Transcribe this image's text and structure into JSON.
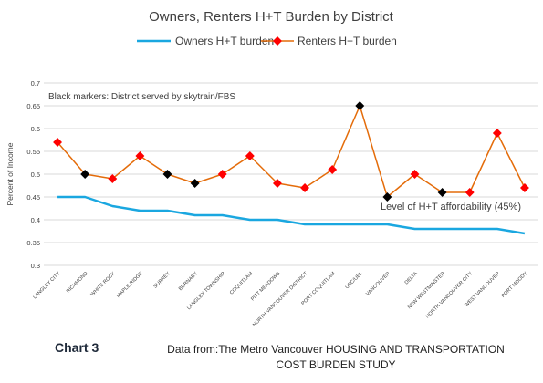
{
  "chart_data": {
    "type": "line",
    "title": "Owners, Renters H+T Burden by District",
    "ylabel": "Percent of Income",
    "xlabel": "",
    "ylim": [
      0.3,
      0.7
    ],
    "yticks": [
      0.3,
      0.35,
      0.4,
      0.45,
      0.5,
      0.55,
      0.6,
      0.65,
      0.7
    ],
    "grid": true,
    "legend_position": "top-center",
    "categories": [
      "LANGLEY CITY",
      "RICHMOND",
      "WHITE ROCK",
      "MAPLE RIDGE",
      "SURREY",
      "BURNABY",
      "LANGLEY TOWNSHIP",
      "COQUITLAM",
      "PITT MEADOWS",
      "NORTH VANCOUVER DISTRICT",
      "PORT COQUITLAM",
      "UBC/UEL",
      "VANCOUVER",
      "DELTA",
      "NEW WESTMINSTER",
      "NORTH VANCOUVER CITY",
      "WEST VANCOUVER",
      "PORT MOODY"
    ],
    "series": [
      {
        "name": "Owners H+T burden",
        "color": "#1aa7e0",
        "values": [
          0.45,
          0.45,
          0.43,
          0.42,
          0.42,
          0.41,
          0.41,
          0.4,
          0.4,
          0.39,
          0.39,
          0.39,
          0.39,
          0.38,
          0.38,
          0.38,
          0.38,
          0.37
        ]
      },
      {
        "name": "Renters H+T burden",
        "color": "#e46c0a",
        "marker_color": "#ff0000",
        "values": [
          0.57,
          0.5,
          0.49,
          0.54,
          0.5,
          0.48,
          0.5,
          0.54,
          0.48,
          0.47,
          0.51,
          0.65,
          0.45,
          0.5,
          0.46,
          0.46,
          0.59,
          0.47
        ],
        "skytrain_served": [
          false,
          true,
          false,
          false,
          true,
          true,
          false,
          false,
          false,
          false,
          false,
          true,
          true,
          false,
          true,
          false,
          false,
          false
        ]
      }
    ],
    "annotations": [
      "Black markers: District served by skytrain/FBS",
      "Level of H+T affordability (45%)"
    ],
    "skytrain_marker_color": "#000000",
    "grid_color": "#d9d9d9"
  },
  "footer": {
    "chart_label": "Chart 3",
    "source_line1": "Data from:The Metro Vancouver HOUSING AND TRANSPORTATION",
    "source_line2": "COST BURDEN STUDY"
  }
}
